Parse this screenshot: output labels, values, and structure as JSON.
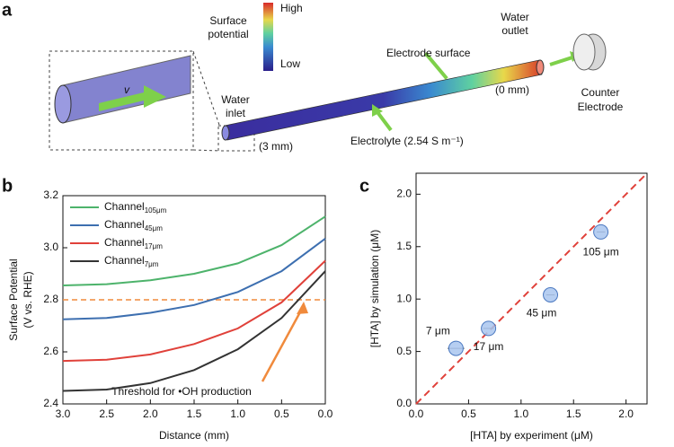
{
  "diagram": {
    "panel": "a",
    "colorbar_title": [
      "Surface",
      "potential"
    ],
    "colorbar_high": "High",
    "colorbar_low": "Low",
    "electrode_surface": "Electrode surface",
    "water_outlet": [
      "Water",
      "outlet"
    ],
    "outlet_distance": "(0 mm)",
    "counter_electrode": [
      "Counter",
      "Electrode"
    ],
    "water_inlet": [
      "Water",
      "inlet"
    ],
    "inlet_distance": "(3 mm)",
    "electrolyte": "Electrolyte (2.54 S m⁻¹)",
    "velocity": "v"
  },
  "chart_data": [
    {
      "type": "line",
      "panel": "b",
      "ylabel": [
        "Surface Potential",
        "(V vs. RHE)"
      ],
      "xlabel": "Distance (mm)",
      "x": [
        3,
        2.5,
        2,
        1.5,
        1,
        0.5,
        0
      ],
      "series": [
        {
          "name": "Channel",
          "subscript": "105μm",
          "color": "#4db36b",
          "values": [
            2.855,
            2.86,
            2.875,
            2.9,
            2.94,
            3.01,
            3.12
          ]
        },
        {
          "name": "Channel",
          "subscript": "45μm",
          "color": "#3d6fb0",
          "values": [
            2.725,
            2.73,
            2.75,
            2.78,
            2.83,
            2.91,
            3.035
          ]
        },
        {
          "name": "Channel",
          "subscript": "17μm",
          "color": "#e0413a",
          "values": [
            2.565,
            2.57,
            2.59,
            2.63,
            2.69,
            2.79,
            2.95
          ]
        },
        {
          "name": "Channel",
          "subscript": "7μm",
          "color": "#333333",
          "values": [
            2.45,
            2.455,
            2.48,
            2.53,
            2.61,
            2.73,
            2.91
          ]
        }
      ],
      "threshold": {
        "value": 2.8,
        "color": "#f08a3c",
        "label": "Threshold for •OH production"
      },
      "xlim": [
        3,
        0
      ],
      "ylim": [
        2.4,
        3.2
      ],
      "xticks": [
        {
          "value": 3,
          "label": "3.0"
        },
        2.5,
        {
          "value": 2,
          "label": "2.0"
        },
        1.5,
        {
          "value": 1,
          "label": "1.0"
        },
        0.5,
        {
          "value": 0,
          "label": "0.0"
        }
      ],
      "yticks": [
        2.4,
        2.6,
        2.8,
        {
          "value": 3,
          "label": "3.0"
        },
        3.2
      ]
    },
    {
      "type": "scatter",
      "panel": "c",
      "xlabel": "[HTA] by experiment (μM)",
      "ylabel": "[HTA] by simulation (μM)",
      "x": [
        0.38,
        0.69,
        1.28,
        1.76
      ],
      "xerr": [
        0.08,
        0.05,
        0.04,
        0.04
      ],
      "values": [
        0.53,
        0.72,
        1.04,
        1.64
      ],
      "point_labels": [
        "7 μm",
        "17 μm",
        "45 μm",
        "105 μm"
      ],
      "color": "#a9c6ee",
      "identity_line": {
        "color": "#e0413a"
      },
      "xlim": [
        0,
        2.2
      ],
      "ylim": [
        0,
        2.2
      ],
      "xticks": [
        {
          "value": 0,
          "label": "0.0"
        },
        0.5,
        {
          "value": 1,
          "label": "1.0"
        },
        1.5,
        {
          "value": 2,
          "label": "2.0"
        }
      ],
      "yticks": [
        {
          "value": 0,
          "label": "0.0"
        },
        0.5,
        {
          "value": 1,
          "label": "1.0"
        },
        1.5,
        {
          "value": 2,
          "label": "2.0"
        }
      ]
    }
  ]
}
